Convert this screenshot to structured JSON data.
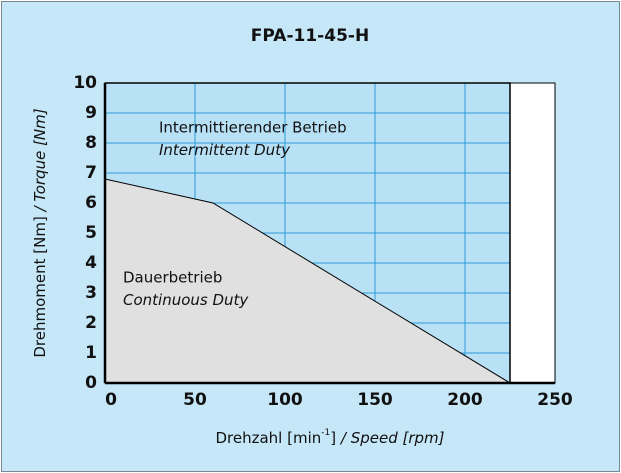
{
  "chart_data": {
    "type": "area",
    "title": "FPA-11-45-H",
    "xlabel": [
      "Drehzahl [min",
      "-1",
      "]",
      " / Speed [rpm]"
    ],
    "ylabel": [
      "Drehmoment [Nm]",
      " / Torque [Nm]"
    ],
    "xlim": [
      0,
      250
    ],
    "xticks": [
      0,
      50,
      100,
      150,
      200,
      250
    ],
    "ylim": [
      0,
      10
    ],
    "yticks": [
      0,
      1,
      2,
      3,
      4,
      5,
      6,
      7,
      8,
      9,
      10
    ],
    "grid": true,
    "series": [
      {
        "color": "#b9e1f6",
        "x": [
          0,
          225
        ],
        "values": [
          10,
          10
        ]
      },
      {
        "color": "#e0e0e0",
        "x": [
          0,
          60,
          225
        ],
        "values": [
          6.8,
          6,
          0
        ]
      }
    ],
    "annotations": [
      {
        "text": "Intermittierender Betrieb",
        "x": 30,
        "y": 8.5
      },
      {
        "text": "Intermittent Duty",
        "x": 30,
        "y": 7.75,
        "italic": true
      },
      {
        "text": "Dauerbetrieb",
        "x": 10,
        "y": 3.5
      },
      {
        "text": "Continuous Duty",
        "x": 10,
        "y": 2.75,
        "italic": true
      }
    ]
  }
}
